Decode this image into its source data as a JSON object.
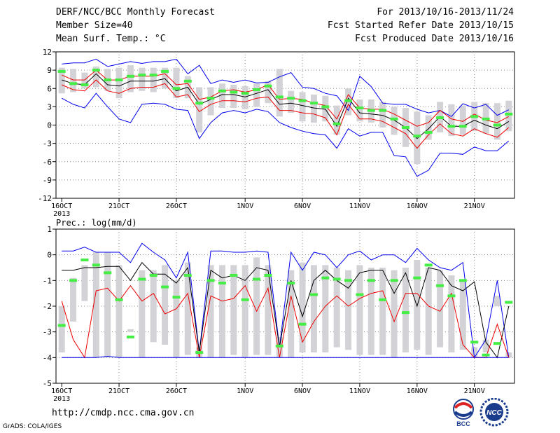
{
  "header": {
    "title": "DERF/NCC/BCC Monthly Forecast",
    "member_size": "Member Size=40",
    "variable": "Mean Surf. Temp.: °C",
    "period": "For 2013/10/16-2013/11/24",
    "started": "Fcst Started Refer Date 2013/10/15",
    "produced": "Fcst Produced Date 2013/10/16"
  },
  "footer": {
    "url": "http://cmdp.ncc.cma.gov.cn",
    "credit": "GrADS: COLA/IGES"
  },
  "logos": {
    "bcc": "BCC",
    "ncc": "NCC"
  },
  "colors": {
    "envelope": "#0000ee",
    "spread": "#ee0000",
    "mean": "#000000",
    "box": "#d3d3d7",
    "obs": "#44ee44",
    "grid": "#888888"
  },
  "chart_data": [
    {
      "type": "line",
      "ylabel": "Mean Surf. Temp.: °C",
      "ylim": [
        -12,
        12
      ],
      "yticks": [
        12,
        9,
        6,
        3,
        0,
        -3,
        -6,
        -9,
        -12
      ],
      "xtick_labels": [
        "16OCT",
        "21OCT",
        "26OCT",
        "1NOV",
        "6NOV",
        "11NOV",
        "16NOV",
        "21NOV"
      ],
      "xtick_days": [
        1,
        6,
        11,
        17,
        22,
        27,
        32,
        37
      ],
      "year_label": "2013",
      "days": 40,
      "series": [
        {
          "role": "max",
          "values": [
            10.0,
            10.2,
            10.2,
            10.8,
            9.6,
            10.0,
            10.4,
            10.1,
            10.4,
            10.4,
            10.8,
            8.4,
            9.8,
            6.8,
            7.4,
            7.0,
            7.4,
            6.9,
            7.0,
            7.9,
            8.6,
            6.2,
            6.0,
            5.2,
            4.8,
            2.4,
            8.0,
            6.3,
            3.6,
            3.4,
            3.4,
            2.6,
            2.0,
            2.4,
            1.4,
            3.5,
            2.8,
            3.4,
            1.6,
            2.5
          ]
        },
        {
          "role": "upper",
          "values": [
            8.2,
            7.4,
            7.4,
            9.0,
            7.4,
            7.4,
            8.0,
            8.0,
            8.0,
            8.4,
            6.6,
            6.8,
            4.2,
            4.6,
            5.6,
            5.8,
            5.4,
            5.8,
            6.6,
            4.2,
            4.4,
            4.2,
            3.6,
            3.2,
            1.0,
            5.0,
            2.8,
            2.6,
            2.6,
            1.8,
            0.8,
            -0.2,
            0.4,
            2.4,
            1.0,
            0.6,
            1.8,
            0.8,
            0.4,
            1.4
          ]
        },
        {
          "role": "mean",
          "values": [
            7.4,
            6.8,
            6.6,
            8.4,
            6.6,
            6.4,
            7.2,
            7.2,
            7.2,
            7.6,
            5.6,
            6.2,
            3.4,
            4.2,
            5.0,
            5.0,
            4.6,
            5.2,
            5.8,
            3.4,
            3.6,
            3.2,
            2.8,
            2.6,
            -0.2,
            4.4,
            2.0,
            1.8,
            1.6,
            0.8,
            -0.4,
            -2.2,
            -0.6,
            1.4,
            -0.2,
            -0.2,
            0.8,
            0.0,
            -0.6,
            0.6
          ]
        },
        {
          "role": "lower",
          "values": [
            6.6,
            5.8,
            5.6,
            7.4,
            5.6,
            5.2,
            6.0,
            6.2,
            6.2,
            6.8,
            4.6,
            5.0,
            2.2,
            3.4,
            4.0,
            4.0,
            3.8,
            4.4,
            4.6,
            2.4,
            2.4,
            2.0,
            1.8,
            1.2,
            -1.6,
            3.4,
            1.0,
            1.0,
            0.6,
            -0.4,
            -1.4,
            -3.8,
            -1.6,
            0.2,
            -1.4,
            -1.8,
            -0.6,
            -1.4,
            -2.0,
            -0.4
          ]
        },
        {
          "role": "min",
          "values": [
            4.4,
            3.4,
            2.8,
            5.2,
            3.0,
            1.0,
            0.4,
            3.4,
            3.6,
            3.4,
            2.6,
            2.4,
            -2.2,
            0.4,
            2.0,
            2.4,
            2.0,
            2.6,
            2.2,
            0.4,
            -0.4,
            -1.0,
            -1.4,
            -1.6,
            -3.8,
            -0.6,
            -1.8,
            -1.2,
            -1.2,
            -5.0,
            -5.2,
            -8.4,
            -7.4,
            -4.6,
            -4.6,
            -4.8,
            -3.6,
            -4.2,
            -4.2,
            -2.6
          ]
        },
        {
          "role": "box_high",
          "values": [
            9.4,
            9.2,
            8.6,
            9.6,
            9.2,
            9.4,
            9.8,
            9.4,
            9.4,
            9.4,
            9.4,
            8.0,
            6.2,
            6.2,
            6.8,
            6.6,
            6.4,
            6.8,
            7.2,
            9.2,
            5.6,
            5.4,
            5.0,
            4.8,
            3.2,
            6.0,
            4.2,
            4.2,
            3.8,
            3.0,
            2.8,
            2.2,
            1.6,
            3.8,
            3.4,
            3.2,
            3.8,
            3.6,
            3.6,
            4.0
          ]
        },
        {
          "role": "box_low",
          "values": [
            5.2,
            5.4,
            6.0,
            6.2,
            5.6,
            4.4,
            5.4,
            5.6,
            5.4,
            6.0,
            4.4,
            4.4,
            -1.2,
            1.6,
            2.8,
            2.8,
            2.6,
            3.0,
            3.6,
            1.4,
            2.0,
            0.6,
            0.4,
            0.6,
            -1.6,
            1.6,
            0.6,
            0.4,
            -0.4,
            -1.6,
            -3.6,
            -6.4,
            -2.4,
            -1.2,
            -1.8,
            -1.6,
            -1.0,
            -1.4,
            -2.4,
            -1.0
          ]
        },
        {
          "role": "observed",
          "values": [
            8.8,
            6.8,
            6.6,
            9.0,
            7.4,
            7.4,
            8.0,
            8.2,
            8.2,
            8.8,
            6.0,
            7.2,
            3.6,
            4.4,
            5.6,
            5.4,
            5.2,
            5.8,
            6.4,
            4.6,
            4.4,
            4.0,
            3.6,
            3.0,
            0.2,
            4.0,
            2.8,
            2.4,
            2.4,
            1.0,
            -0.4,
            -1.8,
            -1.2,
            1.2,
            -0.2,
            -0.2,
            1.4,
            1.0,
            0.0,
            1.8
          ]
        }
      ]
    },
    {
      "type": "line",
      "ylabel": "Prec.: log(mm/d)",
      "ylim": [
        -5,
        1
      ],
      "yticks": [
        1,
        0,
        -1,
        -2,
        -3,
        -4,
        -5
      ],
      "xtick_labels": [
        "16OCT",
        "21OCT",
        "26OCT",
        "1NOV",
        "6NOV",
        "11NOV",
        "16NOV",
        "21NOV"
      ],
      "xtick_days": [
        1,
        6,
        11,
        17,
        22,
        27,
        32,
        37
      ],
      "year_label": "2013",
      "days": 40,
      "series": [
        {
          "role": "max",
          "values": [
            0.15,
            0.15,
            0.3,
            0.1,
            0.1,
            0.1,
            -0.3,
            0.45,
            0.1,
            -0.2,
            -0.9,
            0.1,
            -3.8,
            0.15,
            0.15,
            0.1,
            0.1,
            0.15,
            0.1,
            -3.6,
            0.1,
            -0.6,
            0.1,
            0.0,
            -0.5,
            0.0,
            0.15,
            -0.2,
            0.0,
            0.0,
            -0.3,
            0.25,
            -0.2,
            -0.5,
            -0.6,
            -0.3,
            -4.0,
            -3.3,
            -1.0,
            -4.0
          ]
        },
        {
          "role": "mean",
          "values": [
            -0.6,
            -0.6,
            -0.5,
            -0.5,
            -0.45,
            -0.45,
            -1.0,
            -0.3,
            -0.75,
            -0.75,
            -1.1,
            -0.5,
            -3.8,
            -0.6,
            -0.9,
            -0.8,
            -1.0,
            -0.5,
            -0.6,
            -3.6,
            -1.0,
            -2.4,
            -1.0,
            -0.6,
            -1.0,
            -1.3,
            -0.7,
            -0.6,
            -0.6,
            -1.5,
            -0.7,
            -2.0,
            -0.5,
            -0.6,
            -1.2,
            -1.4,
            -1.05,
            -3.4,
            -4.0,
            -2.0
          ]
        },
        {
          "role": "spread",
          "values": [
            -1.8,
            -3.3,
            -4.0,
            -1.4,
            -1.3,
            -1.8,
            -1.2,
            -1.8,
            -1.5,
            -2.3,
            -2.1,
            -1.5,
            -4.0,
            -1.6,
            -1.8,
            -1.7,
            -1.2,
            -2.2,
            -1.3,
            -4.0,
            -1.6,
            -3.4,
            -2.6,
            -2.0,
            -1.6,
            -2.0,
            -1.7,
            -1.5,
            -1.4,
            -2.6,
            -1.5,
            -1.5,
            -2.0,
            -2.2,
            -1.5,
            -3.5,
            -4.0,
            -4.0,
            -2.7,
            -4.0
          ]
        },
        {
          "role": "min",
          "values": [
            -4.0,
            -4.0,
            -4.0,
            -4.0,
            -3.95,
            -4.0,
            -4.0,
            -4.0,
            -4.0,
            -4.0,
            -4.0,
            -4.0,
            -4.0,
            -4.0,
            -4.0,
            -4.0,
            -4.0,
            -4.0,
            -4.0,
            -4.0,
            -4.0,
            -4.0,
            -4.0,
            -4.0,
            -4.0,
            -4.0,
            -4.0,
            -4.0,
            -4.0,
            -4.0,
            -4.0,
            -4.0,
            -4.0,
            -4.0,
            -4.0,
            -4.0,
            -4.0,
            -4.0,
            -4.0,
            -4.0
          ]
        },
        {
          "role": "box_high",
          "values": [
            -2.0,
            -0.9,
            -0.4,
            0.1,
            0.1,
            -0.4,
            -2.9,
            -0.6,
            -0.6,
            -0.4,
            -1.0,
            -0.3,
            -3.6,
            -0.4,
            -0.4,
            -0.4,
            -0.4,
            -0.1,
            -0.4,
            -3.2,
            -0.6,
            -0.3,
            -0.4,
            -0.4,
            -0.5,
            -0.6,
            -0.4,
            -0.5,
            -0.5,
            -0.6,
            -0.5,
            -0.2,
            -0.5,
            -0.6,
            -0.8,
            -1.0,
            -3.6,
            -3.3,
            -1.6,
            -3.8
          ]
        },
        {
          "role": "box_low",
          "values": [
            -3.8,
            -2.6,
            -1.8,
            -4.0,
            -4.0,
            -4.0,
            -3.0,
            -4.0,
            -3.4,
            -3.5,
            -4.0,
            -3.9,
            -4.0,
            -4.0,
            -4.0,
            -3.9,
            -4.0,
            -3.9,
            -3.9,
            -4.0,
            -4.0,
            -3.8,
            -3.8,
            -3.8,
            -3.6,
            -3.7,
            -3.9,
            -3.9,
            -3.9,
            -4.0,
            -3.8,
            -3.7,
            -3.9,
            -3.6,
            -3.8,
            -3.7,
            -4.0,
            -3.8,
            -2.0,
            -4.0
          ]
        },
        {
          "role": "observed",
          "values": [
            -2.75,
            -1.0,
            -0.2,
            -0.4,
            -0.7,
            -1.75,
            -3.2,
            -0.95,
            -0.8,
            -1.25,
            -1.65,
            -0.8,
            -3.8,
            -1.0,
            -1.1,
            -0.8,
            -1.75,
            -0.95,
            -0.8,
            -3.55,
            -1.1,
            -2.7,
            -1.55,
            -0.9,
            -0.95,
            -1.0,
            -1.55,
            -1.0,
            -1.75,
            -1.0,
            -2.25,
            -0.9,
            -0.4,
            -1.2,
            -1.6,
            -1.0,
            -3.4,
            -3.9,
            -3.45,
            -1.85
          ]
        }
      ]
    }
  ]
}
